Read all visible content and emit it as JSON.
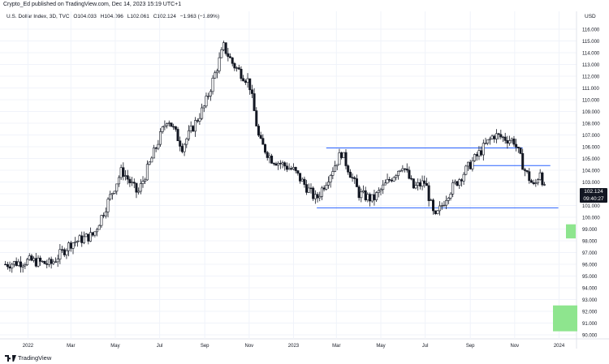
{
  "header": {
    "published": "Crypto_Ed published on TradingView.com, Dec 14, 2023 15:19 UTC+1",
    "symbol": "U.S. Dollar Index, 3D, TVC",
    "open": "O104.033",
    "high": "H104.096",
    "low": "L102.061",
    "close": "C102.124",
    "change": "−1.963 (−1.89%)",
    "currency": "USD"
  },
  "price_tag": {
    "price": "102.124",
    "countdown": "09:40:27"
  },
  "footer": {
    "brand": "TradingView"
  },
  "colors": {
    "candle_body": "#131722",
    "candle_hollow": "#ffffff",
    "line_blue": "#2962ff",
    "box_green": "#8ee58e",
    "grid": "#f0f3fa"
  },
  "chart_data": {
    "type": "candlestick",
    "y_axis": {
      "min": 90,
      "max": 116,
      "ticks": [
        "116.000",
        "115.000",
        "114.000",
        "113.000",
        "112.000",
        "111.000",
        "110.000",
        "109.000",
        "108.000",
        "107.000",
        "106.000",
        "105.000",
        "104.000",
        "103.000",
        "102.000",
        "101.000",
        "100.000",
        "99.000",
        "98.000",
        "97.000",
        "96.000",
        "95.000",
        "94.000",
        "93.000",
        "92.000",
        "91.000",
        "90.000"
      ]
    },
    "x_axis": {
      "labels": [
        "2022",
        "Mar",
        "May",
        "Jul",
        "Sep",
        "Nov",
        "2023",
        "Mar",
        "May",
        "Jul",
        "Sep",
        "Nov",
        "2024"
      ]
    },
    "path": [
      [
        "2021-12-01",
        96.0
      ],
      [
        "2022-01-05",
        96.3
      ],
      [
        "2022-02-01",
        96.0
      ],
      [
        "2022-03-01",
        97.8
      ],
      [
        "2022-04-01",
        98.5
      ],
      [
        "2022-05-10",
        104.0
      ],
      [
        "2022-06-01",
        102.0
      ],
      [
        "2022-07-12",
        108.5
      ],
      [
        "2022-08-01",
        106.0
      ],
      [
        "2022-09-01",
        109.5
      ],
      [
        "2022-09-27",
        114.5
      ],
      [
        "2022-10-10",
        113.0
      ],
      [
        "2022-11-01",
        111.5
      ],
      [
        "2022-11-15",
        106.5
      ],
      [
        "2022-12-01",
        105.0
      ],
      [
        "2023-01-01",
        104.0
      ],
      [
        "2023-02-01",
        101.5
      ],
      [
        "2023-03-08",
        105.5
      ],
      [
        "2023-04-01",
        102.0
      ],
      [
        "2023-04-20",
        101.5
      ],
      [
        "2023-05-31",
        104.5
      ],
      [
        "2023-06-15",
        102.5
      ],
      [
        "2023-07-01",
        103.0
      ],
      [
        "2023-07-14",
        99.8
      ],
      [
        "2023-08-01",
        102.0
      ],
      [
        "2023-09-01",
        104.5
      ],
      [
        "2023-10-03",
        107.0
      ],
      [
        "2023-10-31",
        106.5
      ],
      [
        "2023-11-15",
        104.0
      ],
      [
        "2023-11-28",
        102.5
      ],
      [
        "2023-12-06",
        104.0
      ],
      [
        "2023-12-13",
        102.1
      ]
    ],
    "horizontal_lines": [
      {
        "y": 105.9,
        "x_start": "2023-02-15",
        "x_end": "2023-11-12",
        "color": "#2962ff"
      },
      {
        "y": 100.8,
        "x_start": "2023-02-02",
        "x_end": "2023-12-31",
        "color": "#2962ff"
      },
      {
        "y": 104.4,
        "x_start": "2023-09-01",
        "x_end": "2023-12-20",
        "color": "#2962ff"
      }
    ],
    "boxes": [
      {
        "y_min": 98.2,
        "y_max": 99.4,
        "color": "#8ee58e"
      },
      {
        "y_min": 90.3,
        "y_max": 92.5,
        "color": "#8ee58e"
      }
    ]
  }
}
